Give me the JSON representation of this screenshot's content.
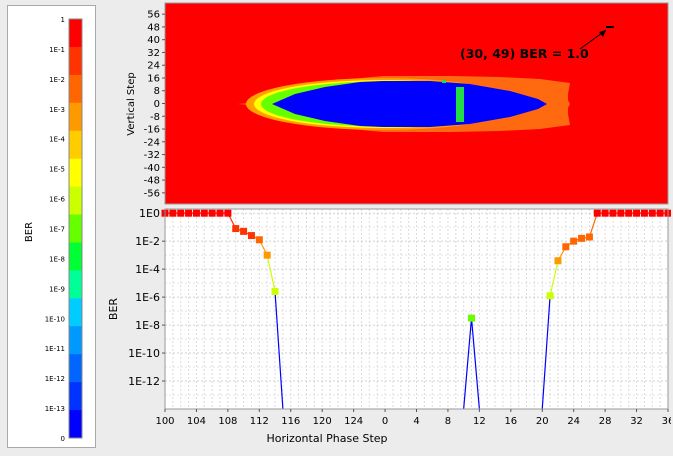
{
  "colorbar": {
    "title": "BER",
    "labels": [
      "1",
      "1E-1",
      "1E-2",
      "1E-3",
      "1E-4",
      "1E-5",
      "1E-6",
      "1E-7",
      "1E-8",
      "1E-9",
      "1E-10",
      "1E-11",
      "1E-12",
      "1E-13",
      "0"
    ],
    "colors": [
      "#ff0000",
      "#ff3300",
      "#ff6600",
      "#ff9900",
      "#ffcc00",
      "#ffff00",
      "#ccff00",
      "#66ff00",
      "#00ff33",
      "#00ff99",
      "#00ccff",
      "#0099ff",
      "#0066ff",
      "#0033ff",
      "#0000ff"
    ]
  },
  "chart_data": [
    {
      "type": "heatmap",
      "ylabel": "Vertical Step",
      "ytick_labels": [
        "56",
        "48",
        "40",
        "32",
        "24",
        "16",
        "8",
        "0",
        "-8",
        "-16",
        "-24",
        "-32",
        "-40",
        "-48",
        "-56"
      ],
      "ylim": [
        -63,
        63
      ],
      "annotation": "(30, 49) BER = 1.0",
      "colors": {
        "high": "#ff0000",
        "margin": "#ff6a10",
        "transition_a": "#ffa000",
        "transition_b": "#ffff00",
        "edge": "#66ff00",
        "open": "#0000ff",
        "center_column": "#22dd44"
      }
    },
    {
      "type": "line",
      "xlabel": "Horizontal Phase Step",
      "ylabel": "BER",
      "xtick_labels": [
        "100",
        "104",
        "108",
        "112",
        "116",
        "120",
        "124",
        "0",
        "4",
        "8",
        "12",
        "16",
        "20",
        "24",
        "28",
        "32",
        "36"
      ],
      "ytick_labels": [
        "1E0",
        "1E-2",
        "1E-4",
        "1E-6",
        "1E-8",
        "1E-10",
        "1E-12"
      ],
      "y_log_range": [
        -14,
        0.3
      ],
      "grid": true,
      "series": [
        {
          "x": [
            100,
            101,
            102,
            103,
            104,
            105,
            106,
            107,
            108,
            109,
            110,
            111,
            112,
            113,
            114,
            115
          ],
          "log_ber": [
            0,
            0,
            0,
            0,
            0,
            0,
            0,
            0,
            0,
            -1.1,
            -1.3,
            -1.6,
            -1.9,
            -3.0,
            -5.6,
            -14
          ]
        },
        {
          "x": [
            10,
            11,
            12
          ],
          "log_ber": [
            -14,
            -7.5,
            -14
          ]
        },
        {
          "x": [
            20,
            21,
            22,
            23,
            24,
            25,
            26,
            27,
            28,
            29,
            30,
            31,
            32,
            33,
            34,
            35,
            36,
            37
          ],
          "log_ber": [
            -14,
            -5.9,
            -3.4,
            -2.4,
            -2.0,
            -1.8,
            -1.7,
            0,
            0,
            0,
            0,
            0,
            0,
            0,
            0,
            0,
            0,
            0
          ]
        }
      ]
    }
  ]
}
